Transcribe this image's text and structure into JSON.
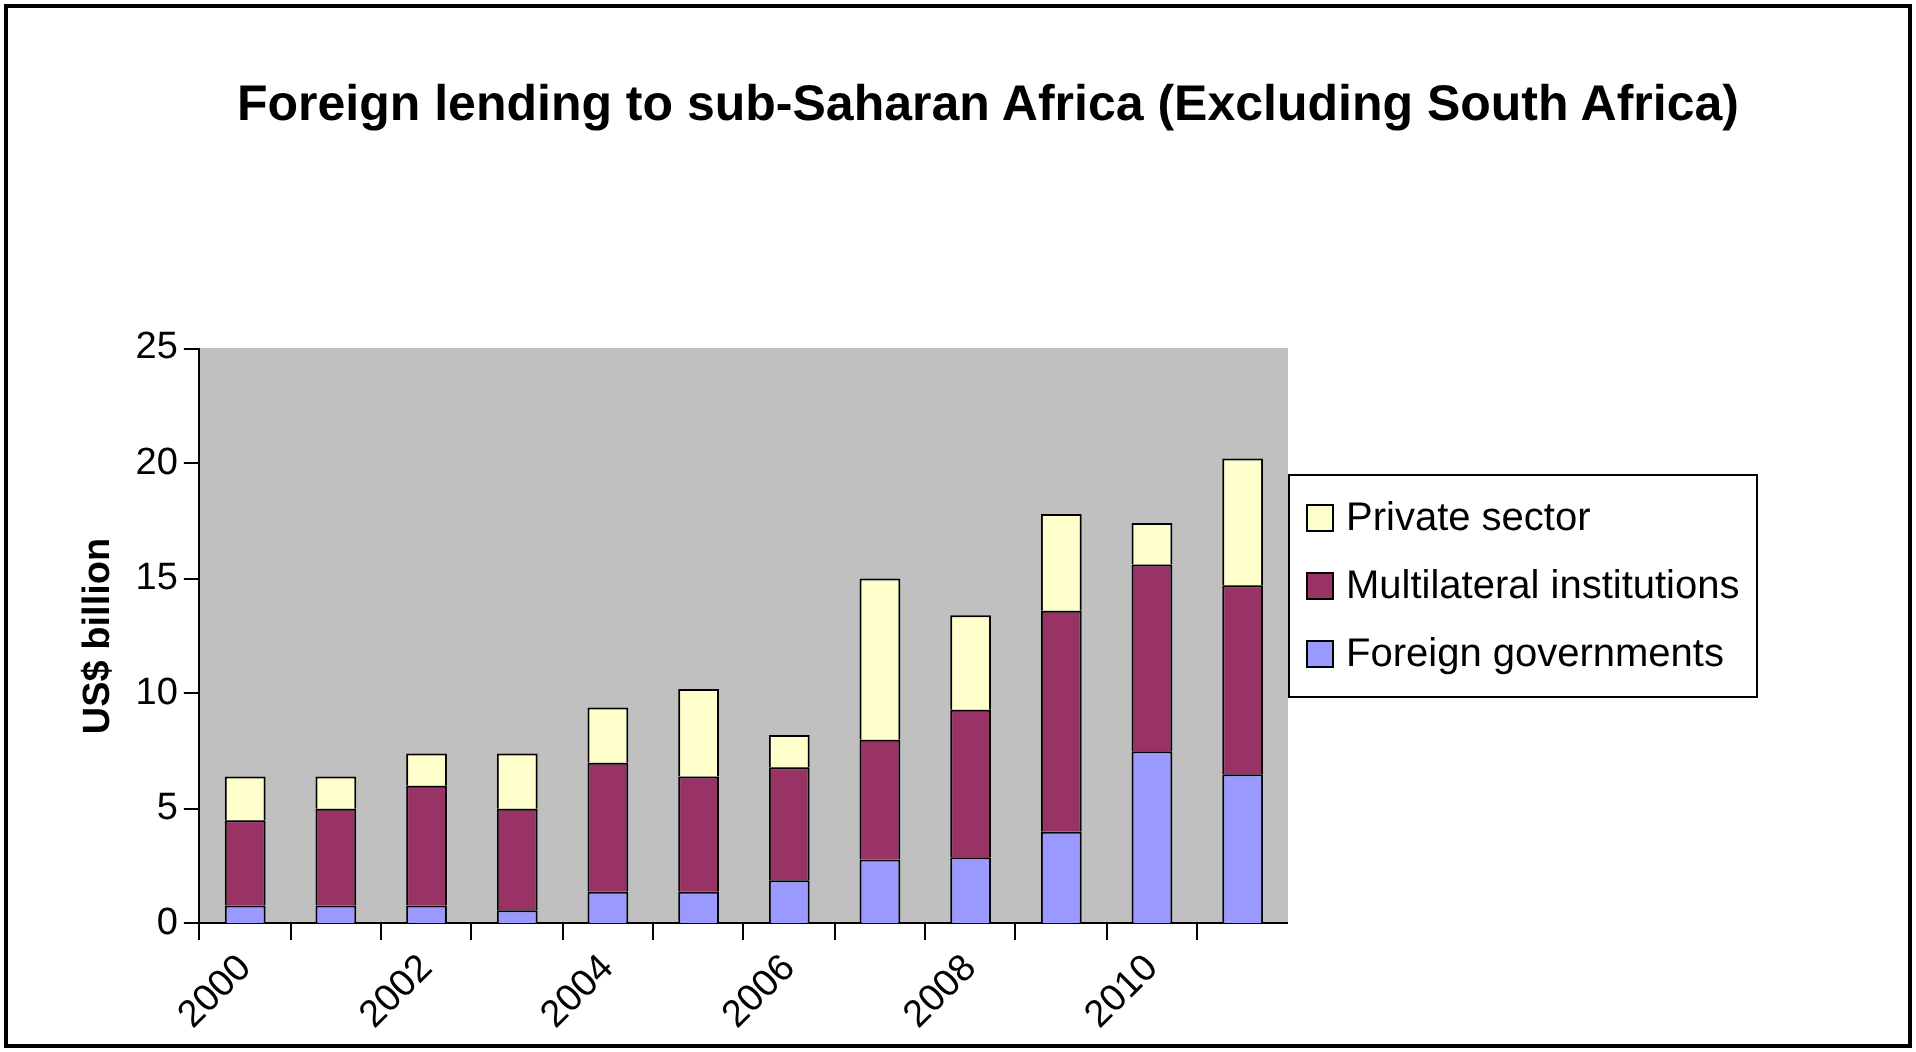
{
  "chart_data": {
    "type": "bar",
    "title": "Foreign lending to sub-Saharan Africa (Excluding South Africa)",
    "ylabel": "US$ billion",
    "categories": [
      "2000",
      null,
      "2002",
      null,
      "2004",
      null,
      "2006",
      null,
      "2008",
      null,
      "2010",
      null
    ],
    "series": [
      {
        "name": "Foreign governments",
        "color": "#9999ff",
        "values": [
          0.8,
          0.8,
          0.8,
          0.6,
          1.4,
          1.4,
          1.9,
          2.8,
          2.9,
          4.0,
          7.5,
          6.5
        ]
      },
      {
        "name": "Multilateral institutions",
        "color": "#993366",
        "values": [
          3.7,
          4.2,
          5.2,
          4.4,
          5.6,
          5.0,
          4.9,
          5.2,
          6.4,
          9.6,
          8.1,
          8.2
        ]
      },
      {
        "name": "Private sector",
        "color": "#ffffcc",
        "values": [
          1.9,
          1.4,
          1.4,
          2.4,
          2.4,
          3.8,
          1.4,
          7.0,
          4.1,
          4.2,
          1.8,
          5.5
        ]
      }
    ],
    "stacked": true,
    "ylim": [
      0,
      25
    ],
    "yticks": [
      0,
      5,
      10,
      15,
      20,
      25
    ],
    "grid": false,
    "legend": "right"
  }
}
